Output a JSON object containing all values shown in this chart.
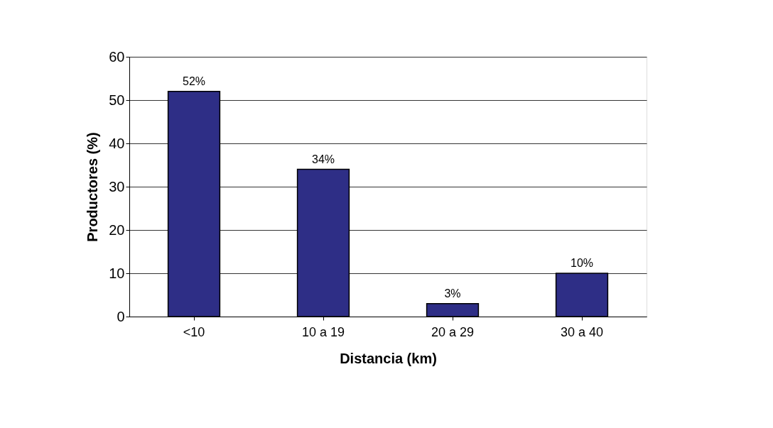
{
  "chart_data": {
    "type": "bar",
    "xlabel": "Distancia (km)",
    "ylabel": "Productores (%)",
    "categories": [
      "<10",
      "10 a 19",
      "20 a 29",
      "30 a 40"
    ],
    "values": [
      52,
      34,
      3,
      10
    ],
    "value_labels": [
      "52%",
      "34%",
      "3%",
      "10%"
    ],
    "color": "#2e2e86",
    "ylim": [
      0,
      60
    ],
    "yticks": [
      0,
      10,
      20,
      30,
      40,
      50,
      60
    ],
    "grid": "y"
  }
}
